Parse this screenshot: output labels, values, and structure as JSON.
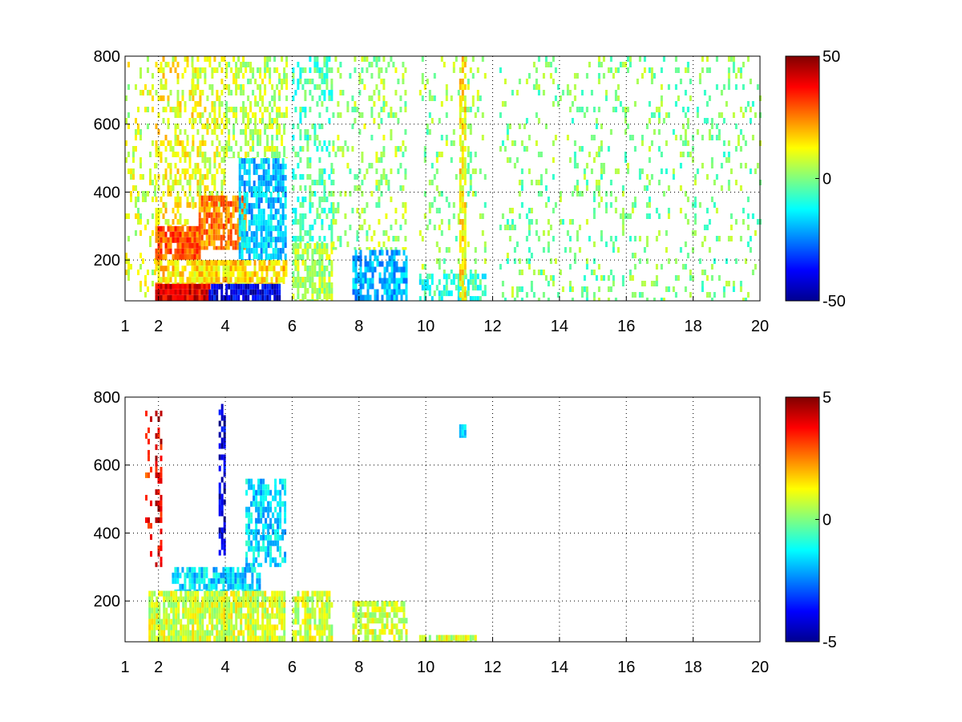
{
  "chart_data": [
    {
      "type": "heatmap",
      "xlim": [
        1,
        20
      ],
      "ylim": [
        80,
        800
      ],
      "x_ticks": [
        1,
        2,
        4,
        6,
        8,
        10,
        12,
        14,
        16,
        18,
        20
      ],
      "y_ticks": [
        200,
        400,
        600,
        800
      ],
      "grid": true,
      "colormap": "jet",
      "colorbar": {
        "min": -50,
        "max": 50,
        "ticks": [
          50,
          0,
          -50
        ]
      },
      "regions": [
        {
          "x": [
            1.0,
            1.9
          ],
          "y": [
            90,
            800
          ],
          "value": 8,
          "density": 0.18
        },
        {
          "x": [
            1.9,
            3.0
          ],
          "y": [
            300,
            800
          ],
          "value": 12,
          "density": 0.35
        },
        {
          "x": [
            3.0,
            4.0
          ],
          "y": [
            350,
            800
          ],
          "value": 10,
          "density": 0.45
        },
        {
          "x": [
            4.0,
            5.8
          ],
          "y": [
            500,
            800
          ],
          "value": 6,
          "density": 0.45
        },
        {
          "x": [
            1.9,
            3.2
          ],
          "y": [
            200,
            300
          ],
          "value": 28,
          "density": 0.85
        },
        {
          "x": [
            3.2,
            4.6
          ],
          "y": [
            230,
            390
          ],
          "value": 25,
          "density": 0.85
        },
        {
          "x": [
            4.4,
            5.8
          ],
          "y": [
            200,
            500
          ],
          "value": -18,
          "density": 0.75
        },
        {
          "x": [
            1.9,
            5.8
          ],
          "y": [
            130,
            200
          ],
          "value": 16,
          "density": 0.8
        },
        {
          "x": [
            1.9,
            3.5
          ],
          "y": [
            80,
            130
          ],
          "value": 40,
          "density": 0.95
        },
        {
          "x": [
            3.5,
            5.6
          ],
          "y": [
            80,
            130
          ],
          "value": -40,
          "density": 0.9
        },
        {
          "x": [
            6.0,
            7.2
          ],
          "y": [
            80,
            250
          ],
          "value": 5,
          "density": 0.7
        },
        {
          "x": [
            6.0,
            7.2
          ],
          "y": [
            250,
            800
          ],
          "value": -5,
          "density": 0.35
        },
        {
          "x": [
            7.8,
            9.4
          ],
          "y": [
            80,
            230
          ],
          "value": -20,
          "density": 0.7
        },
        {
          "x": [
            7.2,
            9.4
          ],
          "y": [
            230,
            800
          ],
          "value": 3,
          "density": 0.22
        },
        {
          "x": [
            9.8,
            11.8
          ],
          "y": [
            80,
            160
          ],
          "value": -8,
          "density": 0.55
        },
        {
          "x": [
            9.8,
            11.8
          ],
          "y": [
            160,
            800
          ],
          "value": 2,
          "density": 0.16
        },
        {
          "x": [
            11.0,
            11.15
          ],
          "y": [
            80,
            800
          ],
          "value": 14,
          "density": 0.8
        },
        {
          "x": [
            12.2,
            20.0
          ],
          "y": [
            80,
            800
          ],
          "value": 0,
          "density": 0.14
        }
      ]
    },
    {
      "type": "heatmap",
      "xlim": [
        1,
        20
      ],
      "ylim": [
        80,
        800
      ],
      "x_ticks": [
        1,
        2,
        4,
        6,
        8,
        10,
        12,
        14,
        16,
        18,
        20
      ],
      "y_ticks": [
        200,
        400,
        600,
        800
      ],
      "grid": true,
      "colormap": "jet",
      "colorbar": {
        "min": -5,
        "max": 5,
        "ticks": [
          5,
          0,
          -5
        ]
      },
      "regions": [
        {
          "x": [
            1.7,
            5.8
          ],
          "y": [
            80,
            230
          ],
          "value": 0.8,
          "density": 0.85
        },
        {
          "x": [
            2.4,
            5.0
          ],
          "y": [
            230,
            300
          ],
          "value": -1.6,
          "density": 0.75
        },
        {
          "x": [
            4.6,
            5.8
          ],
          "y": [
            300,
            560
          ],
          "value": -1.6,
          "density": 0.6
        },
        {
          "x": [
            6.0,
            7.2
          ],
          "y": [
            80,
            230
          ],
          "value": 0.8,
          "density": 0.75
        },
        {
          "x": [
            7.8,
            9.4
          ],
          "y": [
            80,
            200
          ],
          "value": 0.8,
          "density": 0.7
        },
        {
          "x": [
            9.8,
            11.5
          ],
          "y": [
            80,
            100
          ],
          "value": 0.8,
          "density": 0.9
        },
        {
          "x": [
            1.9,
            2.05
          ],
          "y": [
            300,
            760
          ],
          "value": 4.0,
          "density": 0.45
        },
        {
          "x": [
            1.6,
            1.8
          ],
          "y": [
            300,
            760
          ],
          "value": 3.5,
          "density": 0.25
        },
        {
          "x": [
            3.8,
            3.95
          ],
          "y": [
            320,
            780
          ],
          "value": -4.2,
          "density": 0.55
        },
        {
          "x": [
            11.0,
            11.15
          ],
          "y": [
            680,
            720
          ],
          "value": -1.5,
          "density": 1.0
        }
      ]
    }
  ]
}
